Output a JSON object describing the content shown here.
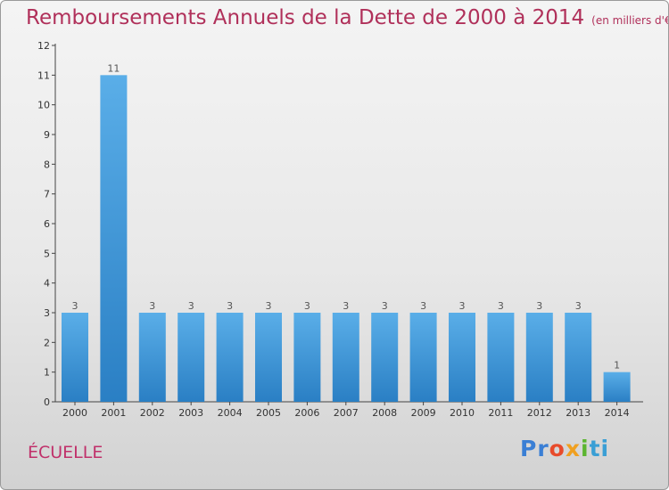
{
  "header": {
    "title": "Remboursements Annuels de la Dette de 2000 à 2014",
    "unit": "(en milliers d'€)"
  },
  "commune": "ÉCUELLE",
  "logo": {
    "p1": "Pr",
    "p2": "o",
    "p3": "x",
    "p4": "i",
    "p5": "ti"
  },
  "colors": {
    "bar_top": "#5aaee8",
    "bar_bottom": "#2a7fc4",
    "title": "#b0305a"
  },
  "chart_data": {
    "type": "bar",
    "title": "Remboursements Annuels de la Dette de 2000 à 2014",
    "subtitle": "(en milliers d'€)",
    "categories": [
      "2000",
      "2001",
      "2002",
      "2003",
      "2004",
      "2005",
      "2006",
      "2007",
      "2008",
      "2009",
      "2010",
      "2011",
      "2012",
      "2013",
      "2014"
    ],
    "values": [
      3,
      11,
      3,
      3,
      3,
      3,
      3,
      3,
      3,
      3,
      3,
      3,
      3,
      3,
      1
    ],
    "ylim": [
      0,
      12
    ],
    "yticks": [
      "0",
      "1",
      "2",
      "3",
      "4",
      "5",
      "6",
      "7",
      "8",
      "9",
      "10",
      "11",
      "12"
    ],
    "xlabel": "",
    "ylabel": "",
    "grid": false
  }
}
